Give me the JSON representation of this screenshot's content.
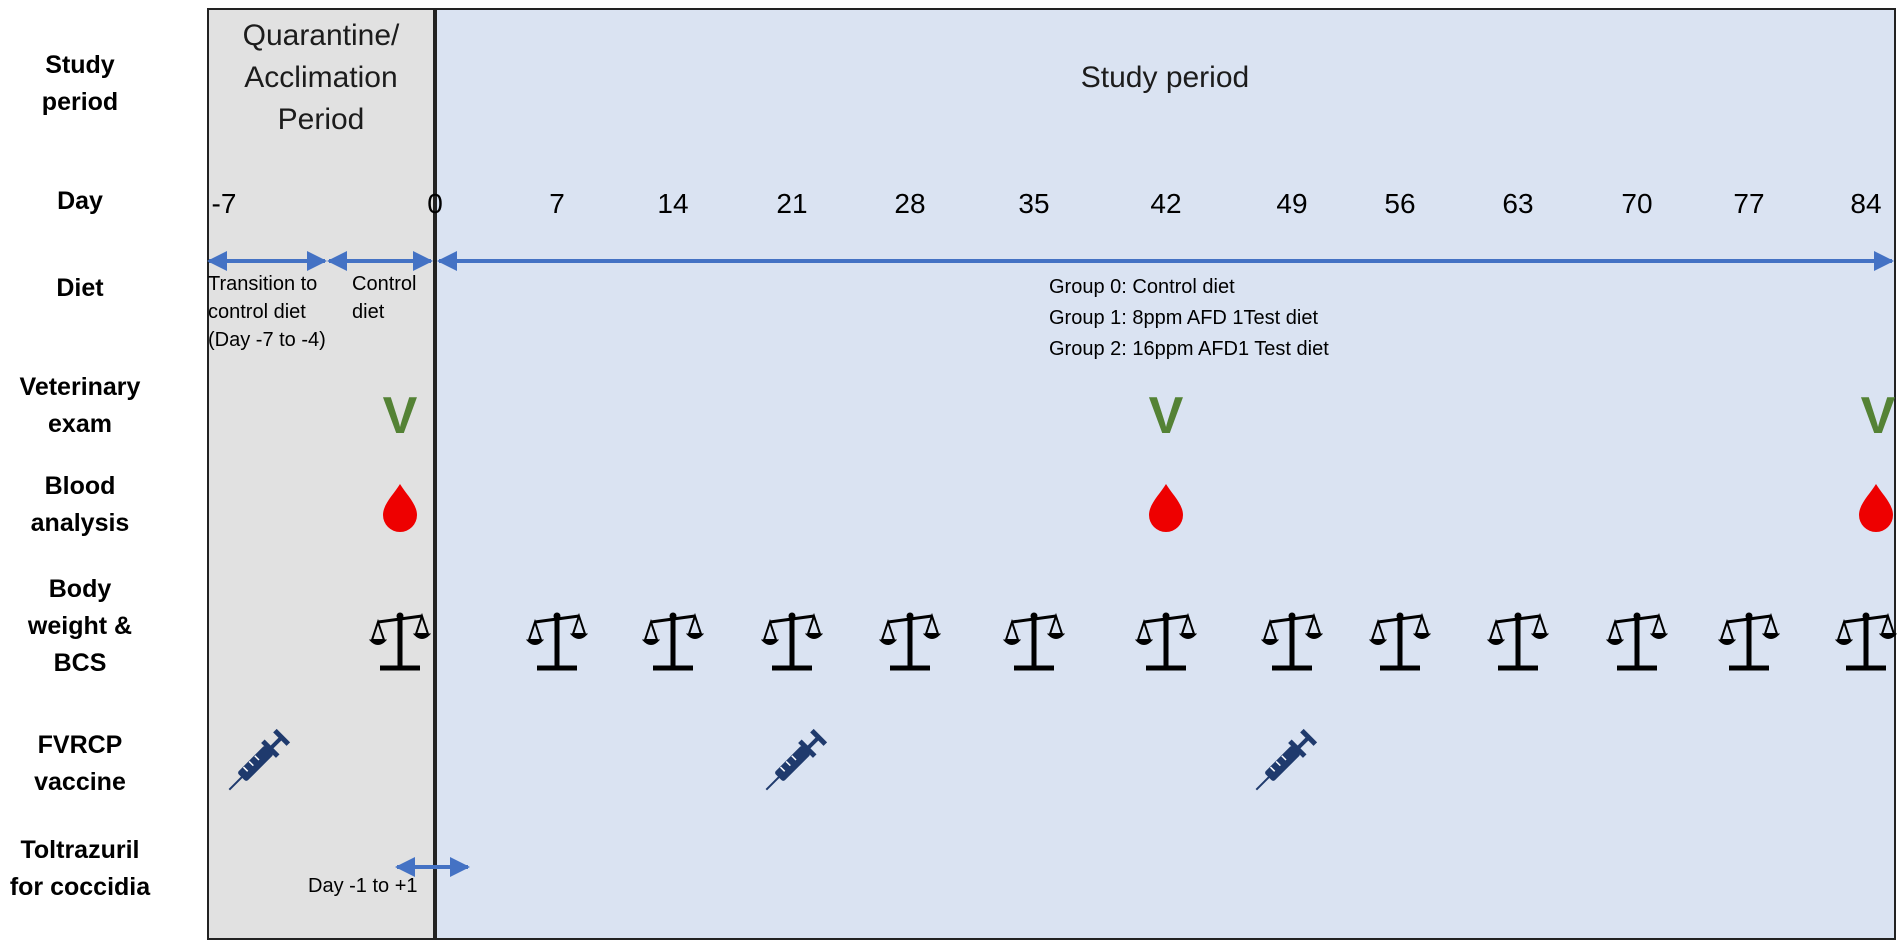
{
  "colors": {
    "quarantine_fill": "#e1e1e1",
    "study_fill": "#dae3f2",
    "panel_border": "#222222",
    "arrow_blue": "#4472c4",
    "vet_green": "#548235",
    "blood_red": "#ee0000",
    "syringe_navy": "#1f3a6d",
    "scale_black": "#000000"
  },
  "row_labels": {
    "study_period": "Study\nperiod",
    "day": "Day",
    "diet": "Diet",
    "veterinary_exam": "Veterinary\nexam",
    "blood_analysis": "Blood\nanalysis",
    "body_weight": "Body\nweight &\nBCS",
    "fvrcp_vaccine": "FVRCP\nvaccine",
    "toltrazuril": "Toltrazuril\nfor coccidia"
  },
  "periods": {
    "quarantine": "Quarantine/\nAcclimation\nPeriod",
    "study": "Study period"
  },
  "days": [
    -7,
    0,
    7,
    14,
    21,
    28,
    35,
    42,
    49,
    56,
    63,
    70,
    77,
    84
  ],
  "diet": {
    "transition_note": "Transition to\ncontrol diet\n(Day -7 to -4)",
    "control_note": "Control\ndiet",
    "groups": [
      "Group 0: Control diet",
      "Group 1: 8ppm AFD 1Test diet",
      "Group 2: 16ppm AFD1 Test diet"
    ]
  },
  "veterinary_exam": {
    "mark": "V",
    "days": [
      -1,
      42,
      84
    ]
  },
  "blood_analysis": {
    "icon": "blood-drop-icon",
    "days": [
      -1,
      42,
      84
    ]
  },
  "body_weight": {
    "icon": "scale-icon",
    "days": [
      -1,
      7,
      14,
      21,
      28,
      35,
      42,
      49,
      56,
      63,
      70,
      77,
      84
    ]
  },
  "fvrcp_vaccine": {
    "icon": "syringe-icon",
    "days": [
      -7,
      21,
      49
    ]
  },
  "toltrazuril": {
    "note": "Day -1 to +1",
    "from_day": -1,
    "to_day": 1
  }
}
